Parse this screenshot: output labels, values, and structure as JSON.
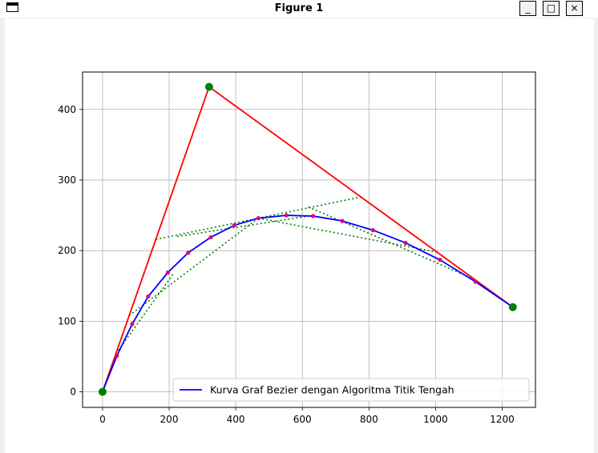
{
  "window": {
    "title": "Figure 1",
    "buttons": {
      "minimize": "_",
      "maximize": "□",
      "close": "×"
    }
  },
  "chart_data": {
    "type": "line",
    "xlim": [
      -60,
      1300
    ],
    "ylim": [
      -22,
      453
    ],
    "xticks": [
      0,
      200,
      400,
      600,
      800,
      1000,
      1200
    ],
    "yticks": [
      0,
      100,
      200,
      300,
      400
    ],
    "grid": true,
    "legend": {
      "position": "lower-right",
      "entries": [
        "Kurva Graf Bezier dengan Algoritma Titik Tengah"
      ]
    },
    "colors": {
      "control_polygon": "#ff0000",
      "bezier_curve": "#0000ff",
      "control_points": "#008000",
      "midpoints": "#e6006b",
      "construction": "#008000"
    },
    "control_points": [
      [
        0,
        0
      ],
      [
        320,
        432
      ],
      [
        1232,
        120
      ]
    ],
    "control_polygon": [
      [
        0,
        0
      ],
      [
        320,
        432
      ],
      [
        1232,
        120
      ]
    ],
    "construction_lines": [
      [
        [
          0,
          0
        ],
        [
          160,
          216
        ]
      ],
      [
        [
          160,
          216
        ],
        [
          776,
          276
        ]
      ],
      [
        [
          776,
          276
        ],
        [
          1232,
          120
        ]
      ],
      [
        [
          80,
          108
        ],
        [
          468,
          246
        ]
      ],
      [
        [
          468,
          246
        ],
        [
          1004,
          198
        ]
      ],
      [
        [
          40,
          54
        ],
        [
          214,
          168
        ]
      ],
      [
        [
          224,
          220
        ],
        [
          632,
          250
        ]
      ],
      [
        [
          618,
          262
        ],
        [
          1118,
          159
        ]
      ]
    ],
    "series": [
      {
        "name": "Kurva Graf Bezier dengan Algoritma Titik Tengah",
        "x": [
          0,
          43,
          89,
          137,
          196,
          257,
          325,
          396,
          468,
          552,
          632,
          720,
          812,
          910,
          1013,
          1120,
          1232
        ],
        "y": [
          0,
          51,
          96,
          135,
          169,
          197,
          219,
          236,
          246,
          250,
          249,
          242,
          229,
          211,
          187,
          156,
          120
        ]
      }
    ],
    "midpoints": {
      "x": [
        43,
        89,
        137,
        196,
        257,
        325,
        396,
        468,
        552,
        632,
        720,
        812,
        910,
        1013,
        1120
      ],
      "y": [
        51,
        96,
        135,
        169,
        197,
        219,
        236,
        246,
        250,
        249,
        242,
        229,
        211,
        187,
        156
      ]
    }
  }
}
